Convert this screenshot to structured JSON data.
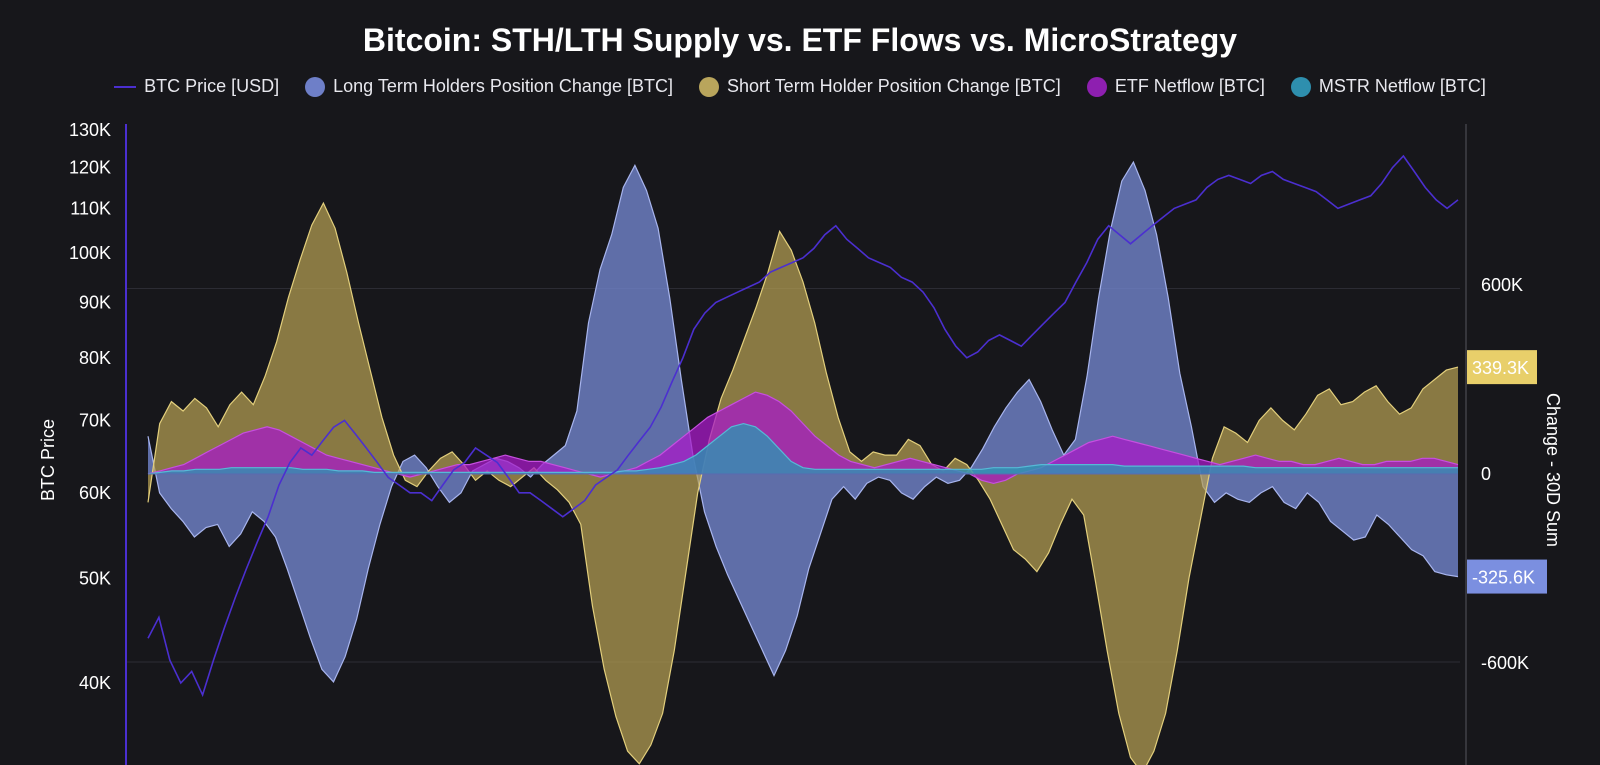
{
  "title": "Bitcoin: STH/LTH Supply vs. ETF Flows vs. MicroStrategy",
  "legend": [
    {
      "label": "BTC Price [USD]",
      "kind": "line",
      "color": "#4b2fd0"
    },
    {
      "label": "Long Term Holders Position Change [BTC]",
      "kind": "dot",
      "color": "#6e7fc8"
    },
    {
      "label": "Short Term Holder Position Change [BTC]",
      "kind": "dot",
      "color": "#b9a55c"
    },
    {
      "label": "ETF Netflow [BTC]",
      "kind": "dot",
      "color": "#8e1fb0"
    },
    {
      "label": "MSTR Netflow [BTC]",
      "kind": "dot",
      "color": "#2e8fae"
    }
  ],
  "chart_data": {
    "type": "area",
    "title": "Bitcoin: STH/LTH Supply vs. ETF Flows vs. MicroStrategy",
    "y_left": {
      "label": "BTC Price",
      "scale": "log",
      "ticks": [
        40000,
        50000,
        60000,
        70000,
        80000,
        90000,
        100000,
        110000,
        120000,
        130000
      ],
      "tick_labels": [
        "40K",
        "50K",
        "60K",
        "70K",
        "80K",
        "90K",
        "100K",
        "110K",
        "120K",
        "130K"
      ],
      "range": [
        35000,
        130000
      ]
    },
    "y_right": {
      "label": "Change - 30D Sum",
      "scale": "linear",
      "ticks": [
        -600000,
        0,
        600000
      ],
      "tick_labels": [
        "-600K",
        "0",
        "600K"
      ],
      "range": [
        -950000,
        1120000
      ]
    },
    "last_value_badges": [
      {
        "text": "339.3K",
        "series": "Short Term Holder Position Change [BTC]",
        "value": 339300,
        "color": "#e8cf6a"
      },
      {
        "text": "-325.6K",
        "series": "Long Term Holders Position Change [BTC]",
        "value": -325600,
        "color": "#7b8fe0"
      }
    ],
    "grid": true,
    "legend_position": "top",
    "series": [
      {
        "name": "BTC Price [USD]",
        "axis": "left",
        "type": "line",
        "color": "#4b2fd0",
        "values": [
          44000,
          46000,
          42000,
          40000,
          41000,
          39000,
          42000,
          45000,
          48000,
          51000,
          54000,
          57000,
          61000,
          64000,
          66000,
          65000,
          67000,
          69000,
          70000,
          68000,
          66000,
          64000,
          62000,
          61000,
          60000,
          60000,
          59000,
          61000,
          63000,
          64000,
          66000,
          65000,
          64000,
          62000,
          60000,
          60000,
          59000,
          58000,
          57000,
          58000,
          59000,
          61000,
          62000,
          63000,
          65000,
          67000,
          69000,
          72000,
          76000,
          80000,
          85000,
          88000,
          90000,
          91000,
          92000,
          93000,
          94000,
          96000,
          97000,
          98000,
          99000,
          101000,
          104000,
          106000,
          103000,
          101000,
          99000,
          98000,
          97000,
          95000,
          94000,
          92000,
          89000,
          85000,
          82000,
          80000,
          81000,
          83000,
          84000,
          83000,
          82000,
          84000,
          86000,
          88000,
          90000,
          94000,
          98000,
          103000,
          106000,
          104000,
          102000,
          104000,
          106000,
          108000,
          110000,
          111000,
          112000,
          115000,
          117000,
          118000,
          117000,
          116000,
          118000,
          119000,
          117000,
          116000,
          115000,
          114000,
          112000,
          110000,
          111000,
          112000,
          113000,
          116000,
          120000,
          123000,
          119000,
          115000,
          112000,
          110000,
          112000
        ]
      },
      {
        "name": "Long Term Holders Position Change [BTC]",
        "axis": "right",
        "type": "area",
        "color": "#6e7fc8",
        "values": [
          120000,
          -60000,
          -110000,
          -150000,
          -200000,
          -170000,
          -160000,
          -230000,
          -190000,
          -120000,
          -150000,
          -200000,
          -300000,
          -410000,
          -520000,
          -620000,
          -660000,
          -580000,
          -460000,
          -300000,
          -160000,
          -40000,
          40000,
          60000,
          20000,
          -40000,
          -90000,
          -60000,
          10000,
          30000,
          50000,
          40000,
          20000,
          -10000,
          30000,
          60000,
          90000,
          200000,
          480000,
          650000,
          760000,
          910000,
          980000,
          900000,
          780000,
          560000,
          300000,
          60000,
          -120000,
          -230000,
          -320000,
          -400000,
          -480000,
          -560000,
          -640000,
          -560000,
          -450000,
          -300000,
          -190000,
          -80000,
          -40000,
          -80000,
          -30000,
          -10000,
          -20000,
          -60000,
          -80000,
          -40000,
          -10000,
          -30000,
          -20000,
          20000,
          80000,
          150000,
          210000,
          260000,
          300000,
          230000,
          140000,
          60000,
          110000,
          310000,
          560000,
          770000,
          930000,
          990000,
          900000,
          760000,
          560000,
          320000,
          150000,
          -40000,
          -90000,
          -60000,
          -80000,
          -90000,
          -60000,
          -40000,
          -90000,
          -110000,
          -60000,
          -90000,
          -150000,
          -180000,
          -210000,
          -200000,
          -130000,
          -160000,
          -200000,
          -240000,
          -260000,
          -310000,
          -320000,
          -325600
        ]
      },
      {
        "name": "Short Term Holder Position Change [BTC]",
        "axis": "right",
        "type": "area",
        "color": "#b9a55c",
        "values": [
          -90000,
          160000,
          230000,
          200000,
          240000,
          210000,
          150000,
          220000,
          260000,
          220000,
          310000,
          420000,
          560000,
          680000,
          790000,
          860000,
          780000,
          640000,
          480000,
          330000,
          180000,
          60000,
          -20000,
          -40000,
          10000,
          50000,
          70000,
          30000,
          -20000,
          10000,
          -20000,
          -40000,
          -10000,
          20000,
          -20000,
          -50000,
          -90000,
          -160000,
          -420000,
          -620000,
          -770000,
          -880000,
          -920000,
          -860000,
          -760000,
          -560000,
          -310000,
          -60000,
          110000,
          240000,
          330000,
          430000,
          530000,
          640000,
          770000,
          710000,
          610000,
          480000,
          320000,
          180000,
          70000,
          40000,
          70000,
          60000,
          60000,
          110000,
          90000,
          30000,
          10000,
          50000,
          30000,
          -20000,
          -80000,
          -160000,
          -240000,
          -270000,
          -310000,
          -250000,
          -160000,
          -80000,
          -130000,
          -340000,
          -560000,
          -760000,
          -900000,
          -950000,
          -880000,
          -760000,
          -560000,
          -330000,
          -140000,
          50000,
          150000,
          130000,
          100000,
          170000,
          210000,
          170000,
          140000,
          190000,
          250000,
          270000,
          220000,
          230000,
          260000,
          280000,
          230000,
          190000,
          210000,
          270000,
          300000,
          330000,
          339300
        ]
      },
      {
        "name": "ETF Netflow [BTC]",
        "axis": "right",
        "type": "area",
        "color": "#8e1fb0",
        "values": [
          0,
          10000,
          20000,
          30000,
          50000,
          70000,
          90000,
          110000,
          130000,
          140000,
          150000,
          140000,
          120000,
          100000,
          80000,
          60000,
          50000,
          40000,
          30000,
          20000,
          10000,
          0,
          -10000,
          0,
          10000,
          20000,
          30000,
          30000,
          40000,
          50000,
          60000,
          50000,
          40000,
          40000,
          30000,
          20000,
          10000,
          0,
          -10000,
          0,
          10000,
          20000,
          40000,
          60000,
          90000,
          120000,
          150000,
          180000,
          200000,
          220000,
          240000,
          260000,
          250000,
          230000,
          200000,
          160000,
          120000,
          90000,
          60000,
          40000,
          30000,
          20000,
          30000,
          40000,
          50000,
          40000,
          30000,
          20000,
          10000,
          0,
          -20000,
          -30000,
          -20000,
          0,
          10000,
          20000,
          40000,
          60000,
          80000,
          100000,
          110000,
          120000,
          110000,
          100000,
          90000,
          80000,
          70000,
          60000,
          50000,
          40000,
          30000,
          40000,
          50000,
          60000,
          50000,
          40000,
          40000,
          30000,
          30000,
          40000,
          50000,
          40000,
          30000,
          30000,
          40000,
          40000,
          40000,
          50000,
          50000,
          40000,
          30000
        ]
      },
      {
        "name": "MSTR Netflow [BTC]",
        "axis": "right",
        "type": "area",
        "color": "#2e8fae",
        "values": [
          0,
          5000,
          10000,
          10000,
          15000,
          15000,
          15000,
          20000,
          20000,
          20000,
          20000,
          20000,
          20000,
          15000,
          15000,
          15000,
          10000,
          10000,
          10000,
          5000,
          5000,
          5000,
          5000,
          5000,
          5000,
          5000,
          5000,
          5000,
          5000,
          5000,
          5000,
          5000,
          5000,
          5000,
          5000,
          5000,
          5000,
          5000,
          5000,
          5000,
          10000,
          10000,
          15000,
          20000,
          30000,
          40000,
          60000,
          90000,
          120000,
          150000,
          160000,
          150000,
          120000,
          80000,
          40000,
          20000,
          15000,
          15000,
          15000,
          15000,
          15000,
          15000,
          15000,
          15000,
          15000,
          15000,
          15000,
          15000,
          15000,
          15000,
          15000,
          20000,
          20000,
          20000,
          25000,
          30000,
          30000,
          30000,
          30000,
          30000,
          30000,
          30000,
          25000,
          25000,
          25000,
          25000,
          25000,
          25000,
          25000,
          25000,
          25000,
          25000,
          25000,
          20000,
          20000,
          20000,
          20000,
          20000,
          20000,
          20000,
          20000,
          20000,
          20000,
          20000,
          20000,
          20000,
          20000,
          20000,
          20000,
          20000,
          20000
        ]
      }
    ]
  }
}
